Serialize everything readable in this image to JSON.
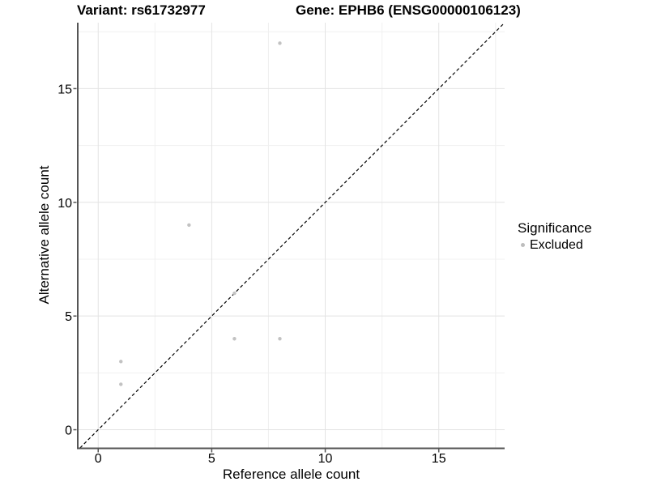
{
  "chart_data": {
    "type": "scatter",
    "title_left": "Variant: rs61732977",
    "title_right": "Gene: EPHB6 (ENSG00000106123)",
    "xlabel": "Reference allele count",
    "ylabel": "Alternative allele count",
    "xlim": [
      -0.9,
      17.9
    ],
    "ylim": [
      -0.8,
      17.9
    ],
    "x_ticks": [
      0,
      5,
      10,
      15
    ],
    "y_ticks": [
      0,
      5,
      10,
      15
    ],
    "x_minor_ticks": [
      2.5,
      7.5,
      12.5,
      17.5
    ],
    "y_minor_ticks": [
      2.5,
      7.5,
      12.5,
      17.5
    ],
    "grid": true,
    "series": [
      {
        "name": "Excluded",
        "color": "#c2c2c2",
        "points": [
          {
            "x": 8,
            "y": 17
          },
          {
            "x": 4,
            "y": 9
          },
          {
            "x": 6,
            "y": 6
          },
          {
            "x": 6,
            "y": 4
          },
          {
            "x": 8,
            "y": 4
          },
          {
            "x": 1,
            "y": 3
          },
          {
            "x": 1,
            "y": 2
          }
        ]
      }
    ],
    "reference_line": {
      "kind": "identity-y-equals-x",
      "style": "dashed",
      "color": "#000000"
    },
    "legend": {
      "position": "right",
      "title": "Significance",
      "items": [
        {
          "label": "Excluded",
          "color": "#bdbdbd"
        }
      ]
    },
    "colors": {
      "point": "#c2c2c2",
      "grid_major": "#e3e3e3",
      "grid_minor": "#f0f0f0",
      "axis_line": "#555555",
      "tick_mark": "#555555",
      "ref_line": "#000000",
      "text": "#000000",
      "background": "#ffffff"
    }
  }
}
